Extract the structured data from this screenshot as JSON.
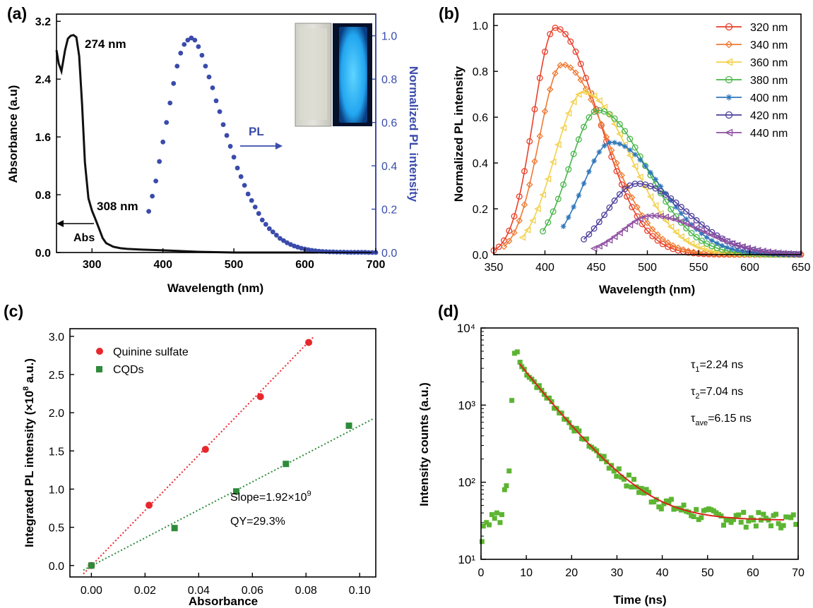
{
  "chart_data": [
    {
      "panel": "(a)",
      "type": "line",
      "xlabel": "Wavelength (nm)",
      "ylabel": "Absorbance (a.u)",
      "ylabel_right": "Normalized PL intensity",
      "xlim": [
        250,
        700
      ],
      "ylim": [
        0,
        3.3
      ],
      "ylim_right": [
        0,
        1.1
      ],
      "xticks": [
        300,
        400,
        500,
        600,
        700
      ],
      "yticks": [
        0.0,
        0.8,
        1.6,
        2.4,
        3.2
      ],
      "yticks_right": [
        0.0,
        0.2,
        0.4,
        0.6,
        0.8,
        1.0
      ],
      "annotations": [
        "274 nm",
        "308 nm",
        "Abs",
        "PL"
      ],
      "inset": "cuvette photographs under daylight and UV light",
      "colors": {
        "abs": "#111111",
        "pl": "#3a4bab"
      },
      "series": [
        {
          "name": "Abs",
          "axis": "left",
          "x": [
            250,
            253,
            257,
            262,
            266,
            270,
            274,
            278,
            282,
            286,
            290,
            295,
            300,
            305,
            310,
            315,
            320,
            330,
            340,
            350,
            370,
            400,
            450,
            500,
            600,
            700
          ],
          "y": [
            2.8,
            2.62,
            2.51,
            2.8,
            2.96,
            3.0,
            3.01,
            2.98,
            2.72,
            2.05,
            1.25,
            0.75,
            0.58,
            0.46,
            0.33,
            0.2,
            0.13,
            0.08,
            0.06,
            0.05,
            0.04,
            0.03,
            0.01,
            0.0,
            0.0,
            0.0
          ]
        },
        {
          "name": "PL",
          "axis": "right",
          "x": [
            380,
            385,
            390,
            395,
            400,
            405,
            410,
            415,
            420,
            425,
            430,
            435,
            440,
            445,
            450,
            455,
            460,
            465,
            470,
            475,
            480,
            485,
            490,
            495,
            500,
            505,
            510,
            515,
            520,
            525,
            530,
            535,
            540,
            545,
            550,
            555,
            560,
            565,
            570,
            575,
            580,
            585,
            590,
            595,
            600,
            605,
            610,
            615,
            620,
            625,
            630,
            635,
            640,
            645,
            650,
            655,
            660,
            665,
            670,
            675,
            680,
            685,
            690,
            695,
            700
          ],
          "y": [
            0.19,
            0.26,
            0.33,
            0.42,
            0.51,
            0.6,
            0.69,
            0.78,
            0.86,
            0.92,
            0.96,
            0.98,
            0.99,
            0.98,
            0.95,
            0.91,
            0.86,
            0.81,
            0.76,
            0.7,
            0.65,
            0.59,
            0.54,
            0.49,
            0.44,
            0.39,
            0.35,
            0.31,
            0.27,
            0.24,
            0.21,
            0.18,
            0.15,
            0.13,
            0.11,
            0.095,
            0.08,
            0.065,
            0.055,
            0.045,
            0.037,
            0.03,
            0.025,
            0.02,
            0.016,
            0.013,
            0.01,
            0.008,
            0.006,
            0.005,
            0.004,
            0.003,
            0.003,
            0.002,
            0.002,
            0.002,
            0.001,
            0.001,
            0.001,
            0.001,
            0.001,
            0.001,
            0.0,
            0.0,
            0.0
          ]
        }
      ]
    },
    {
      "panel": "(b)",
      "type": "line",
      "xlabel": "Wavelength (nm)",
      "ylabel": "Normalized PL intensity",
      "xlim": [
        350,
        650
      ],
      "ylim": [
        0,
        1.05
      ],
      "xticks": [
        350,
        400,
        450,
        500,
        550,
        600,
        650
      ],
      "yticks": [
        0.0,
        0.2,
        0.4,
        0.6,
        0.8,
        1.0
      ],
      "legend": "top-right",
      "series": [
        {
          "name": "320 nm",
          "color": "#e8402a",
          "marker": "circle",
          "start": 350,
          "peak": 410,
          "amp": 0.99,
          "w1": 30,
          "w2": 60
        },
        {
          "name": "340 nm",
          "color": "#ef7a33",
          "marker": "diamond",
          "start": 360,
          "peak": 417,
          "amp": 0.83,
          "w1": 32,
          "w2": 62
        },
        {
          "name": "360 nm",
          "color": "#f2d04a",
          "marker": "triangle-left",
          "start": 378,
          "peak": 438,
          "amp": 0.71,
          "w1": 40,
          "w2": 64
        },
        {
          "name": "380 nm",
          "color": "#49b64a",
          "marker": "circle",
          "start": 398,
          "peak": 452,
          "amp": 0.63,
          "w1": 40,
          "w2": 66
        },
        {
          "name": "400 nm",
          "color": "#2f77bb",
          "marker": "star",
          "start": 418,
          "peak": 465,
          "amp": 0.49,
          "w1": 40,
          "w2": 68
        },
        {
          "name": "420 nm",
          "color": "#4c3f9c",
          "marker": "circle",
          "start": 438,
          "peak": 490,
          "amp": 0.31,
          "w1": 42,
          "w2": 68
        },
        {
          "name": "440 nm",
          "color": "#8e4ea1",
          "marker": "triangle-left",
          "start": 448,
          "peak": 505,
          "amp": 0.17,
          "w1": 42,
          "w2": 70
        }
      ]
    },
    {
      "panel": "(c)",
      "type": "scatter",
      "xlabel": "Absorbance",
      "ylabel": "Integrated PL intensity (×10⁸ a.u.)",
      "xlim": [
        -0.008,
        0.106
      ],
      "ylim": [
        -0.15,
        3.1
      ],
      "xticks": [
        0.0,
        0.02,
        0.04,
        0.06,
        0.08,
        0.1
      ],
      "yticks": [
        0.0,
        0.5,
        1.0,
        1.5,
        2.0,
        2.5,
        3.0
      ],
      "annotations": [
        "Slope=1.92×10⁹",
        "QY=29.3%"
      ],
      "legend": "top-left",
      "series": [
        {
          "name": "Quinine sulfate",
          "color": "#e8262c",
          "marker": "circle",
          "x": [
            0.0,
            0.0215,
            0.0425,
            0.063,
            0.081
          ],
          "y": [
            0.0,
            0.79,
            1.52,
            2.21,
            2.92
          ],
          "fit": {
            "x": [
              -0.003,
              0.083
            ],
            "y": [
              -0.11,
              3.0
            ]
          }
        },
        {
          "name": "CQDs",
          "color": "#2e8b3a",
          "marker": "square",
          "x": [
            0.0,
            0.031,
            0.054,
            0.0725,
            0.096
          ],
          "y": [
            0.0,
            0.49,
            0.97,
            1.33,
            1.83
          ],
          "fit": {
            "x": [
              -0.003,
              0.105
            ],
            "y": [
              -0.06,
              1.92
            ]
          }
        }
      ]
    },
    {
      "panel": "(d)",
      "type": "scatter",
      "xlabel": "Time (ns)",
      "ylabel": "Intensity counts (a.u.)",
      "xlim": [
        0,
        70
      ],
      "ylim": [
        10,
        10000
      ],
      "yscale": "log",
      "xticks": [
        0,
        10,
        20,
        30,
        40,
        50,
        60,
        70
      ],
      "yticks": [
        "10¹",
        "10²",
        "10³",
        "10⁴"
      ],
      "annotations": [
        "τ₁=2.24 ns",
        "τ₂=7.04 ns",
        "τave=6.15 ns"
      ],
      "colors": {
        "data": "#5cb531",
        "fit": "#d9241c"
      },
      "fit": {
        "tau1": 2.24,
        "tau2": 7.04,
        "tau_ave": 6.15,
        "t0": 8.5,
        "t_end": 67,
        "A0": 3400,
        "B": 32
      }
    }
  ],
  "labels": {
    "a": "(a)",
    "b": "(b)",
    "c": "(c)",
    "d": "(d)",
    "a_peak1": "274 nm",
    "a_peak2": "308 nm",
    "a_abs": "Abs",
    "a_pl": "PL",
    "a_xlabel": "Wavelength (nm)",
    "a_ylabel": "Absorbance (a.u)",
    "a_ylabel_right": "Normalized PL intensity",
    "b_xlabel": "Wavelength (nm)",
    "b_ylabel": "Normalized PL intensity",
    "c_xlabel": "Absorbance",
    "c_ylabel_pre": "Integrated PL intensity (×10",
    "c_ylabel_sup": "8",
    "c_ylabel_post": " a.u.)",
    "c_slope_pre": "Slope=1.92×10",
    "c_slope_sup": "9",
    "c_qy": "QY=29.3%",
    "d_xlabel": "Time (ns)",
    "d_ylabel": "Intensity counts (a.u.)",
    "d_tau1_main": "τ",
    "d_tau1_sub": "1",
    "d_tau1_val": "=2.24 ns",
    "d_tau2_main": "τ",
    "d_tau2_sub": "2",
    "d_tau2_val": "=7.04 ns",
    "d_tau3_main": "τ",
    "d_tau3_sub": "ave",
    "d_tau3_val": "=6.15 ns"
  }
}
